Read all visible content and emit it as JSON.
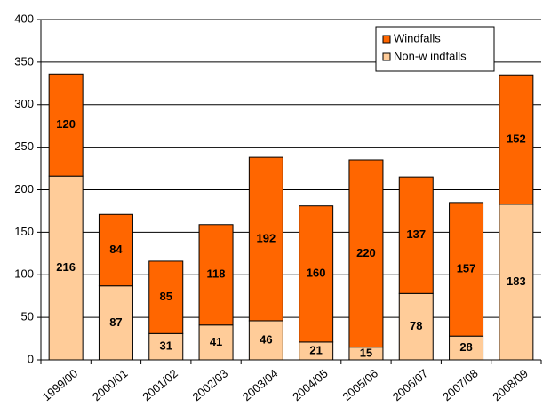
{
  "chart_data": {
    "type": "stacked_bar",
    "categories": [
      "1999/00",
      "2000/01",
      "2001/02",
      "2002/03",
      "2003/04",
      "2004/05",
      "2005/06",
      "2006/07",
      "2007/08",
      "2008/09"
    ],
    "series": [
      {
        "name": "Non-w indfalls",
        "color": "#ffcc99",
        "values": [
          216,
          87,
          31,
          41,
          46,
          21,
          15,
          78,
          28,
          183
        ]
      },
      {
        "name": "Windfalls",
        "color": "#ff6600",
        "values": [
          120,
          84,
          85,
          118,
          192,
          160,
          220,
          137,
          157,
          152
        ]
      }
    ],
    "ylim": [
      0,
      400
    ],
    "yticks": [
      0,
      50,
      100,
      150,
      200,
      250,
      300,
      350,
      400
    ],
    "grid": true,
    "legend": "top-right"
  }
}
